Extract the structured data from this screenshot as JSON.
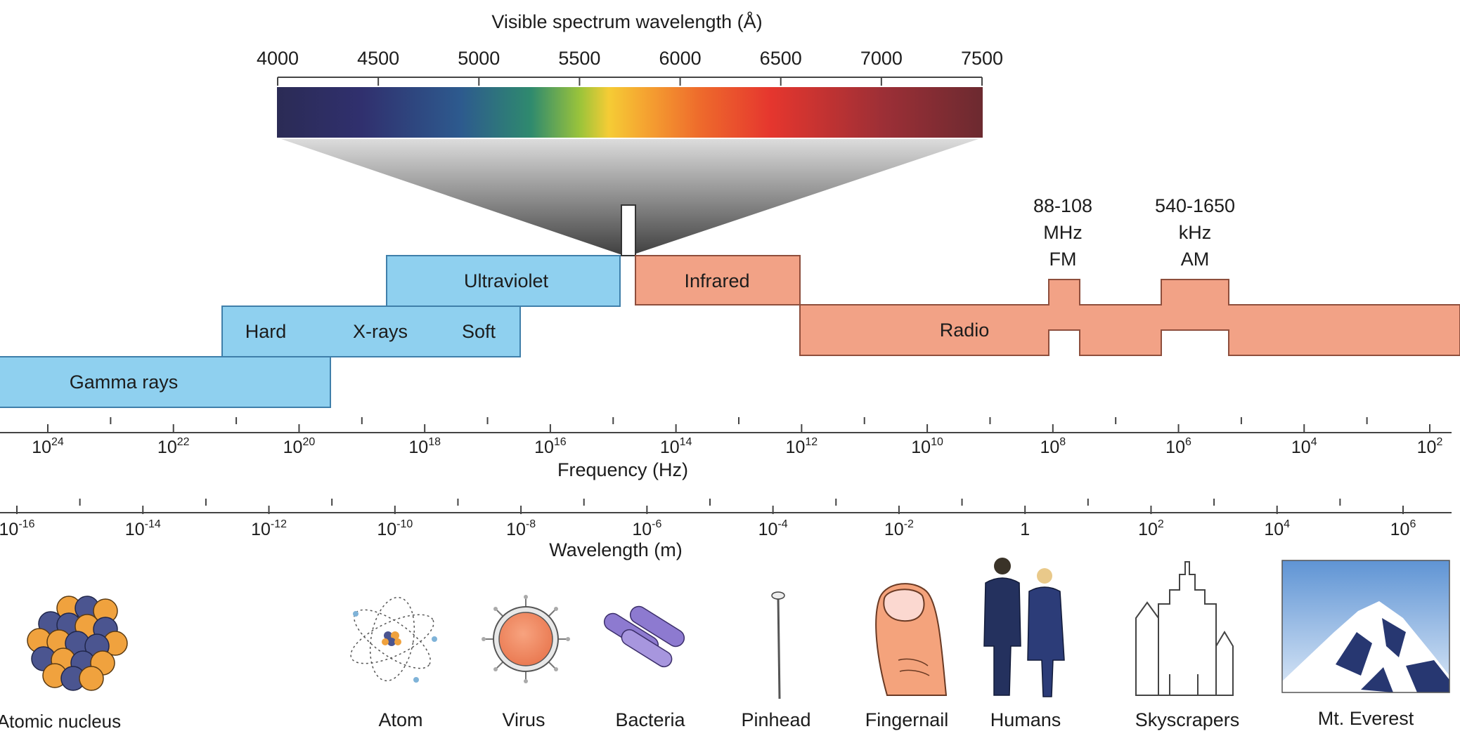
{
  "spectrum": {
    "title": "Visible spectrum wavelength (Å)",
    "ticks": [
      "4000",
      "4500",
      "5000",
      "5500",
      "6000",
      "6500",
      "7000",
      "7500"
    ]
  },
  "bands": {
    "ultraviolet": "Ultraviolet",
    "infrared": "Infrared",
    "hard": "Hard",
    "xrays": "X-rays",
    "soft": "Soft",
    "gamma": "Gamma rays",
    "radio": "Radio"
  },
  "fm": {
    "line1": "88-108",
    "line2": "MHz",
    "line3": "FM"
  },
  "am": {
    "line1": "540-1650",
    "line2": "kHz",
    "line3": "AM"
  },
  "frequency_axis": {
    "label": "Frequency (Hz)",
    "ticks": [
      {
        "base": "10",
        "exp": "24"
      },
      {
        "base": "10",
        "exp": "22"
      },
      {
        "base": "10",
        "exp": "20"
      },
      {
        "base": "10",
        "exp": "18"
      },
      {
        "base": "10",
        "exp": "16"
      },
      {
        "base": "10",
        "exp": "14"
      },
      {
        "base": "10",
        "exp": "12"
      },
      {
        "base": "10",
        "exp": "10"
      },
      {
        "base": "10",
        "exp": "8"
      },
      {
        "base": "10",
        "exp": "6"
      },
      {
        "base": "10",
        "exp": "4"
      },
      {
        "base": "10",
        "exp": "2"
      }
    ]
  },
  "wavelength_axis": {
    "label": "Wavelength (m)",
    "ticks": [
      {
        "base": "10",
        "exp": "-16"
      },
      {
        "base": "10",
        "exp": "-14"
      },
      {
        "base": "10",
        "exp": "-12"
      },
      {
        "base": "10",
        "exp": "-10"
      },
      {
        "base": "10",
        "exp": "-8"
      },
      {
        "base": "10",
        "exp": "-6"
      },
      {
        "base": "10",
        "exp": "-4"
      },
      {
        "base": "10",
        "exp": "-2"
      },
      {
        "base": "1",
        "exp": ""
      },
      {
        "base": "10",
        "exp": "2"
      },
      {
        "base": "10",
        "exp": "4"
      },
      {
        "base": "10",
        "exp": "6"
      }
    ]
  },
  "objects": [
    {
      "label": "Atomic nucleus",
      "icon": "atomic-nucleus-icon"
    },
    {
      "label": "Atom",
      "icon": "atom-icon"
    },
    {
      "label": "Virus",
      "icon": "virus-icon"
    },
    {
      "label": "Bacteria",
      "icon": "bacteria-icon"
    },
    {
      "label": "Pinhead",
      "icon": "pinhead-icon"
    },
    {
      "label": "Fingernail",
      "icon": "fingernail-icon"
    },
    {
      "label": "Humans",
      "icon": "humans-icon"
    },
    {
      "label": "Skyscrapers",
      "icon": "skyscrapers-icon"
    },
    {
      "label": "Mt. Everest",
      "icon": "mountain-icon"
    }
  ],
  "colors": {
    "ionizing_band": "#8fd0ef",
    "ionizing_border": "#3f7faa",
    "radio_band": "#f2a286",
    "radio_border": "#8e4e3c"
  }
}
